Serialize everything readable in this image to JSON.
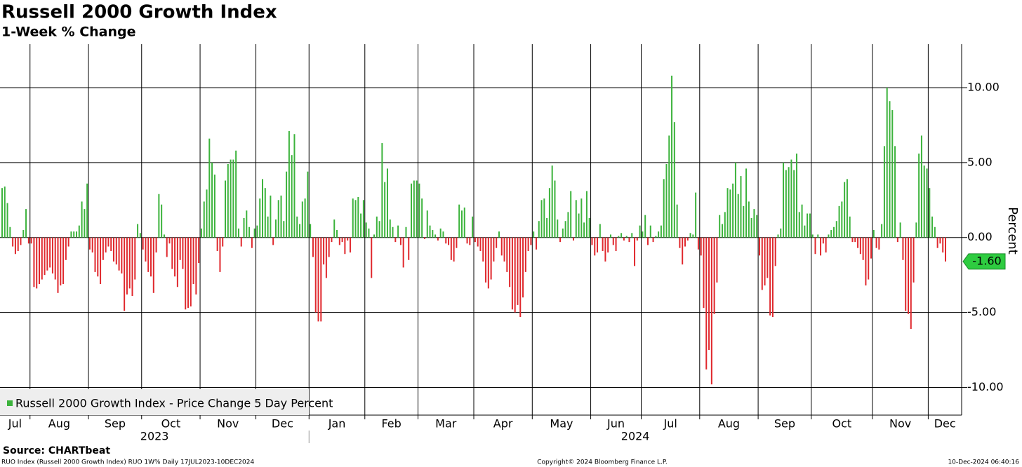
{
  "chart_data": {
    "type": "bar",
    "title": "Russell 2000 Growth Index",
    "subtitle": "1-Week % Change",
    "y_label": "Percent",
    "source": "Source: CHARTbeat",
    "footer_left": "RUO Index (Russell 2000 Growth Index) RUO 1W%  Daily 17JUL2023-10DEC2024",
    "footer_center": "Copyright© 2024 Bloomberg Finance L.P.",
    "footer_right": "10-Dec-2024 06:40:16",
    "year_labels": [
      "2023",
      "2024"
    ],
    "last_value_label": "-1.60",
    "legend_position": "lower left",
    "colors": {
      "positive": "#3cb33c",
      "negative": "#e0282d"
    },
    "ylim": [
      -11.85,
      12.9
    ],
    "yticks": [
      {
        "value": -10,
        "label": "-10.00"
      },
      {
        "value": -5,
        "label": "-5.00"
      },
      {
        "value": 0,
        "label": "0.00"
      },
      {
        "value": 5,
        "label": "5.00"
      },
      {
        "value": 10,
        "label": "10.00"
      }
    ],
    "grid": true,
    "categories": [
      "Jul",
      null,
      null,
      null,
      null,
      null,
      null,
      null,
      null,
      null,
      null,
      "Aug",
      null,
      null,
      null,
      null,
      null,
      null,
      null,
      null,
      null,
      null,
      null,
      null,
      null,
      null,
      null,
      null,
      null,
      null,
      null,
      null,
      null,
      "Sep",
      null,
      null,
      null,
      null,
      null,
      null,
      null,
      null,
      null,
      null,
      null,
      null,
      null,
      null,
      null,
      null,
      null,
      null,
      null,
      "Oct",
      null,
      null,
      null,
      null,
      null,
      null,
      null,
      null,
      null,
      null,
      null,
      null,
      null,
      null,
      null,
      null,
      null,
      null,
      null,
      null,
      null,
      "Nov",
      null,
      null,
      null,
      null,
      null,
      null,
      null,
      null,
      null,
      null,
      null,
      null,
      null,
      null,
      null,
      null,
      null,
      null,
      null,
      null,
      "Dec",
      null,
      null,
      null,
      null,
      null,
      null,
      null,
      null,
      null,
      null,
      null,
      null,
      null,
      null,
      null,
      null,
      null,
      null,
      null,
      "Jan",
      null,
      null,
      null,
      null,
      null,
      null,
      null,
      null,
      null,
      null,
      null,
      null,
      null,
      null,
      null,
      null,
      null,
      null,
      null,
      null,
      "Feb",
      null,
      null,
      null,
      null,
      null,
      null,
      null,
      null,
      null,
      null,
      null,
      null,
      null,
      null,
      null,
      null,
      null,
      null,
      null,
      "Mar",
      null,
      null,
      null,
      null,
      null,
      null,
      null,
      null,
      null,
      null,
      null,
      null,
      null,
      null,
      null,
      null,
      null,
      null,
      null,
      null,
      "Apr",
      null,
      null,
      null,
      null,
      null,
      null,
      null,
      null,
      null,
      null,
      null,
      null,
      null,
      null,
      null,
      null,
      null,
      null,
      null,
      null,
      null,
      "May",
      null,
      null,
      null,
      null,
      null,
      null,
      null,
      null,
      null,
      null,
      null,
      null,
      null,
      null,
      null,
      null,
      null,
      null,
      null,
      null,
      null,
      "Jun",
      null,
      null,
      null,
      null,
      null,
      null,
      null,
      null,
      null,
      null,
      null,
      null,
      null,
      null,
      null,
      null,
      null,
      null,
      "Jul",
      null,
      null,
      null,
      null,
      null,
      null,
      null,
      null,
      null,
      null,
      null,
      null,
      null,
      null,
      null,
      null,
      null,
      null,
      null,
      null,
      null,
      "Aug",
      null,
      null,
      null,
      null,
      null,
      null,
      null,
      null,
      null,
      null,
      null,
      null,
      null,
      null,
      null,
      null,
      null,
      null,
      null,
      null,
      null,
      "Sep",
      null,
      null,
      null,
      null,
      null,
      null,
      null,
      null,
      null,
      null,
      null,
      null,
      null,
      null,
      null,
      null,
      null,
      null,
      null,
      "Oct",
      null,
      null,
      null,
      null,
      null,
      null,
      null,
      null,
      null,
      null,
      null,
      null,
      null,
      null,
      null,
      null,
      null,
      null,
      null,
      null,
      null,
      null,
      "Nov",
      null,
      null,
      null,
      null,
      null,
      null,
      null,
      null,
      null,
      null,
      null,
      null,
      null,
      null,
      null,
      null,
      null,
      null,
      null,
      null,
      "Dec",
      null,
      null,
      null,
      null,
      null,
      null
    ],
    "series": [
      {
        "name": "Russell 2000 Growth Index - Price Change 5 Day Percent",
        "color": "#3cb33c",
        "values": [
          3.3,
          3.4,
          2.3,
          0.7,
          -0.6,
          -1.1,
          -0.9,
          -0.5,
          0.5,
          1.9,
          -0.4,
          -0.4,
          -3.3,
          -3.4,
          -3.1,
          -2.8,
          -2.5,
          -2.2,
          -2.0,
          -2.4,
          -2.8,
          -3.7,
          -3.2,
          -3.1,
          -1.5,
          -0.6,
          0.4,
          0.4,
          0.4,
          0.8,
          2.4,
          1.9,
          3.6,
          -0.8,
          -1.0,
          -2.3,
          -2.6,
          -3.1,
          -1.5,
          -1.0,
          -0.6,
          -0.9,
          -1.6,
          -1.8,
          -2.2,
          -2.4,
          -4.9,
          -3.8,
          -3.4,
          -3.9,
          -2.8,
          0.9,
          0.3,
          -0.8,
          -1.6,
          -2.3,
          -2.6,
          -3.7,
          -1.0,
          2.9,
          2.2,
          0.2,
          -1.3,
          -0.4,
          -2.1,
          -2.6,
          -3.3,
          -1.5,
          -2.1,
          -4.8,
          -4.7,
          -4.6,
          -3.1,
          -3.8,
          -1.7,
          0.6,
          2.4,
          3.2,
          6.6,
          5.0,
          4.2,
          -0.9,
          -2.3,
          -0.6,
          3.8,
          4.9,
          5.2,
          5.2,
          5.8,
          0.6,
          -0.6,
          1.3,
          1.8,
          0.7,
          -0.7,
          0.6,
          0.8,
          2.6,
          3.9,
          3.3,
          1.4,
          2.8,
          -0.5,
          1.2,
          2.5,
          2.8,
          1.1,
          4.4,
          7.1,
          5.5,
          6.9,
          1.4,
          0.9,
          2.4,
          2.6,
          4.4,
          0.9,
          -1.3,
          -5.0,
          -5.6,
          -5.6,
          -1.8,
          -2.7,
          -1.3,
          -0.3,
          1.2,
          0.5,
          -0.5,
          -0.3,
          -1.1,
          -0.2,
          -1.0,
          2.6,
          2.5,
          2.7,
          1.6,
          2.5,
          1.0,
          0.6,
          -2.7,
          0.2,
          1.4,
          1.1,
          6.3,
          3.7,
          4.6,
          1.2,
          0.7,
          -0.3,
          0.8,
          -0.5,
          -2.0,
          0.7,
          -1.5,
          3.6,
          3.8,
          3.8,
          3.6,
          2.6,
          -0.1,
          1.8,
          0.8,
          0.5,
          0.2,
          -0.2,
          0.6,
          0.4,
          -0.4,
          -0.5,
          -1.5,
          -1.6,
          -0.7,
          2.2,
          1.8,
          2.0,
          -0.4,
          -0.5,
          1.4,
          -0.3,
          -0.6,
          -0.9,
          -1.6,
          -3.0,
          -3.4,
          -2.8,
          -1.6,
          -0.7,
          0.4,
          -1.2,
          -1.6,
          -2.3,
          -3.3,
          -4.8,
          -5.0,
          -4.5,
          -5.3,
          -4.0,
          -2.3,
          -0.9,
          -0.5,
          0.4,
          -0.8,
          1.1,
          2.5,
          2.6,
          1.3,
          3.3,
          4.8,
          3.8,
          1.2,
          -0.3,
          0.6,
          1.1,
          1.7,
          3.1,
          -0.2,
          2.5,
          1.6,
          2.6,
          1.0,
          3.1,
          1.3,
          -0.5,
          -1.2,
          -1.0,
          0.9,
          -0.9,
          -1.6,
          -1.0,
          0.2,
          -0.5,
          -0.9,
          0.1,
          0.3,
          -0.2,
          0.1,
          -0.3,
          0.3,
          -1.9,
          -0.2,
          0.8,
          0.4,
          1.5,
          -0.5,
          0.8,
          -0.3,
          0.1,
          0.4,
          0.8,
          3.9,
          4.9,
          6.8,
          10.8,
          7.7,
          2.2,
          -0.7,
          -1.8,
          -0.6,
          -0.2,
          0.3,
          0.2,
          3.0,
          -0.8,
          -1.2,
          -4.7,
          -8.8,
          -7.5,
          -9.8,
          -5.1,
          -3.0,
          1.5,
          0.9,
          1.7,
          3.3,
          3.2,
          3.6,
          5.0,
          2.9,
          4.1,
          2.1,
          4.6,
          2.4,
          1.3,
          1.9,
          1.5,
          -1.2,
          -3.5,
          -3.2,
          -2.7,
          -5.2,
          -5.3,
          -1.9,
          0.2,
          0.6,
          5.0,
          4.5,
          4.7,
          5.2,
          4.5,
          5.6,
          1.7,
          2.2,
          0.8,
          1.6,
          1.6,
          0.2,
          -1.1,
          0.2,
          -1.2,
          -0.4,
          -1.0,
          0.2,
          0.5,
          0.7,
          1.1,
          2.1,
          2.4,
          3.7,
          3.9,
          1.4,
          -0.3,
          -0.3,
          -0.7,
          -1.1,
          -1.5,
          -3.2,
          -2.8,
          -1.4,
          0.5,
          -0.7,
          -0.8,
          0.9,
          6.1,
          10.0,
          9.1,
          8.5,
          6.1,
          -0.3,
          1.0,
          -1.5,
          -4.9,
          -5.1,
          -6.1,
          -3.0,
          1.0,
          5.6,
          6.8,
          4.8,
          4.6,
          3.3,
          1.4,
          0.7,
          -0.7,
          -0.4,
          -1.0,
          -1.6
        ]
      }
    ]
  }
}
